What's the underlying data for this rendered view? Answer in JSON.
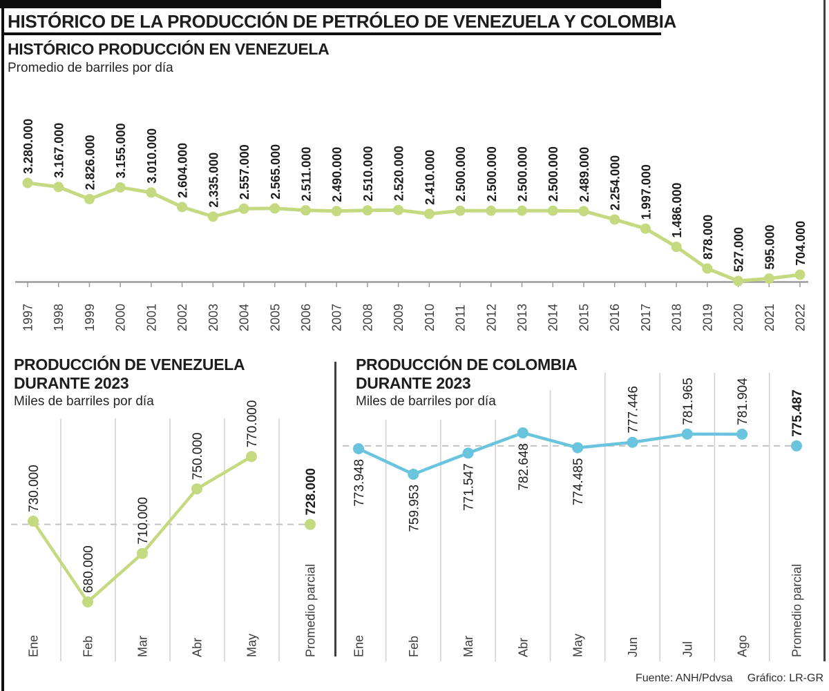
{
  "page_title": "HISTÓRICO DE LA PRODUCCIÓN DE PETRÓLEO DE VENEZUELA Y COLOMBIA",
  "footer": {
    "source": "Fuente: ANH/Pdvsa",
    "credit": "Gráfico: LR-GR"
  },
  "colors": {
    "venezuela_green": "#c5d980",
    "colombia_blue": "#6ac4de",
    "label_text": "#1d1d1d",
    "axis_text": "#3d3d3d",
    "grid": "#cfcfcf",
    "axis": "#9b9b9b",
    "dashed": "#c2c2c2",
    "frame": "#0e0e0e"
  },
  "chart_data": [
    {
      "id": "historico-venezuela",
      "type": "line",
      "title": "HISTÓRICO PRODUCCIÓN EN VENEZUELA",
      "subtitle": "Promedio de barriles por día",
      "color": "#c5d980",
      "categories": [
        "1997",
        "1998",
        "1999",
        "2000",
        "2001",
        "2002",
        "2003",
        "2004",
        "2005",
        "2006",
        "2007",
        "2008",
        "2009",
        "2010",
        "2011",
        "2012",
        "2013",
        "2014",
        "2015",
        "2016",
        "2017",
        "2018",
        "2019",
        "2020",
        "2021",
        "2022"
      ],
      "values": [
        3280000,
        3167000,
        2826000,
        3155000,
        3010000,
        2604000,
        2335000,
        2557000,
        2565000,
        2511000,
        2490000,
        2510000,
        2520000,
        2410000,
        2500000,
        2500000,
        2500000,
        2500000,
        2489000,
        2254000,
        1997000,
        1486000,
        878000,
        527000,
        595000,
        704000
      ],
      "labels": [
        "3.280.000",
        "3.167.000",
        "2.826.000",
        "3.155.000",
        "3.010.000",
        "2.604.000",
        "2.335.000",
        "2.557.000",
        "2.565.000",
        "2.511.000",
        "2.490.000",
        "2.510.000",
        "2.520.000",
        "2.410.000",
        "2.500.000",
        "2.500.000",
        "2.500.000",
        "2.500.000",
        "2.489.000",
        "2.254.000",
        "1.997.000",
        "1.486.000",
        "878.000",
        "527.000",
        "595.000",
        "704.000"
      ],
      "ylim": [
        400000,
        3400000
      ],
      "grid": false,
      "legend": "none",
      "value_labels": "rotated-above-points"
    },
    {
      "id": "venezuela-2023",
      "type": "line",
      "title": "PRODUCCIÓN DE VENEZUELA DURANTE 2023",
      "title_lines": [
        "PRODUCCIÓN DE VENEZUELA",
        "DURANTE 2023"
      ],
      "subtitle": "Miles de barriles por día",
      "color": "#c5d980",
      "categories": [
        "Ene",
        "Feb",
        "Mar",
        "Abr",
        "May"
      ],
      "values": [
        730000,
        680000,
        710000,
        750000,
        770000
      ],
      "labels": [
        "730.000",
        "680.000",
        "710.000",
        "750.000",
        "770.000"
      ],
      "average": {
        "category": "Promedio parcial",
        "value": 728000,
        "label": "728.000",
        "line": "dashed"
      },
      "ylim": [
        650000,
        790000
      ],
      "grid": true,
      "legend": "none",
      "value_labels": "rotated-above-points"
    },
    {
      "id": "colombia-2023",
      "type": "line",
      "title": "PRODUCCIÓN DE COLOMBIA DURANTE 2023",
      "title_lines": [
        "PRODUCCIÓN DE COLOMBIA",
        "DURANTE 2023"
      ],
      "subtitle": "Miles de barriles por día",
      "color": "#6ac4de",
      "categories": [
        "Ene",
        "Feb",
        "Mar",
        "Abr",
        "May",
        "Jun",
        "Jul",
        "Ago"
      ],
      "values": [
        773948,
        759953,
        771547,
        782648,
        774485,
        777446,
        781965,
        781904
      ],
      "labels": [
        "773.948",
        "759.953",
        "771.547",
        "782.648",
        "774.485",
        "777.446",
        "781.965",
        "781.904"
      ],
      "average": {
        "category": "Promedio parcial",
        "value": 775487,
        "label": "775.487",
        "line": "dashed"
      },
      "ylim": [
        755000,
        790000
      ],
      "grid": true,
      "legend": "none",
      "value_labels": "rotated-mixed"
    }
  ]
}
